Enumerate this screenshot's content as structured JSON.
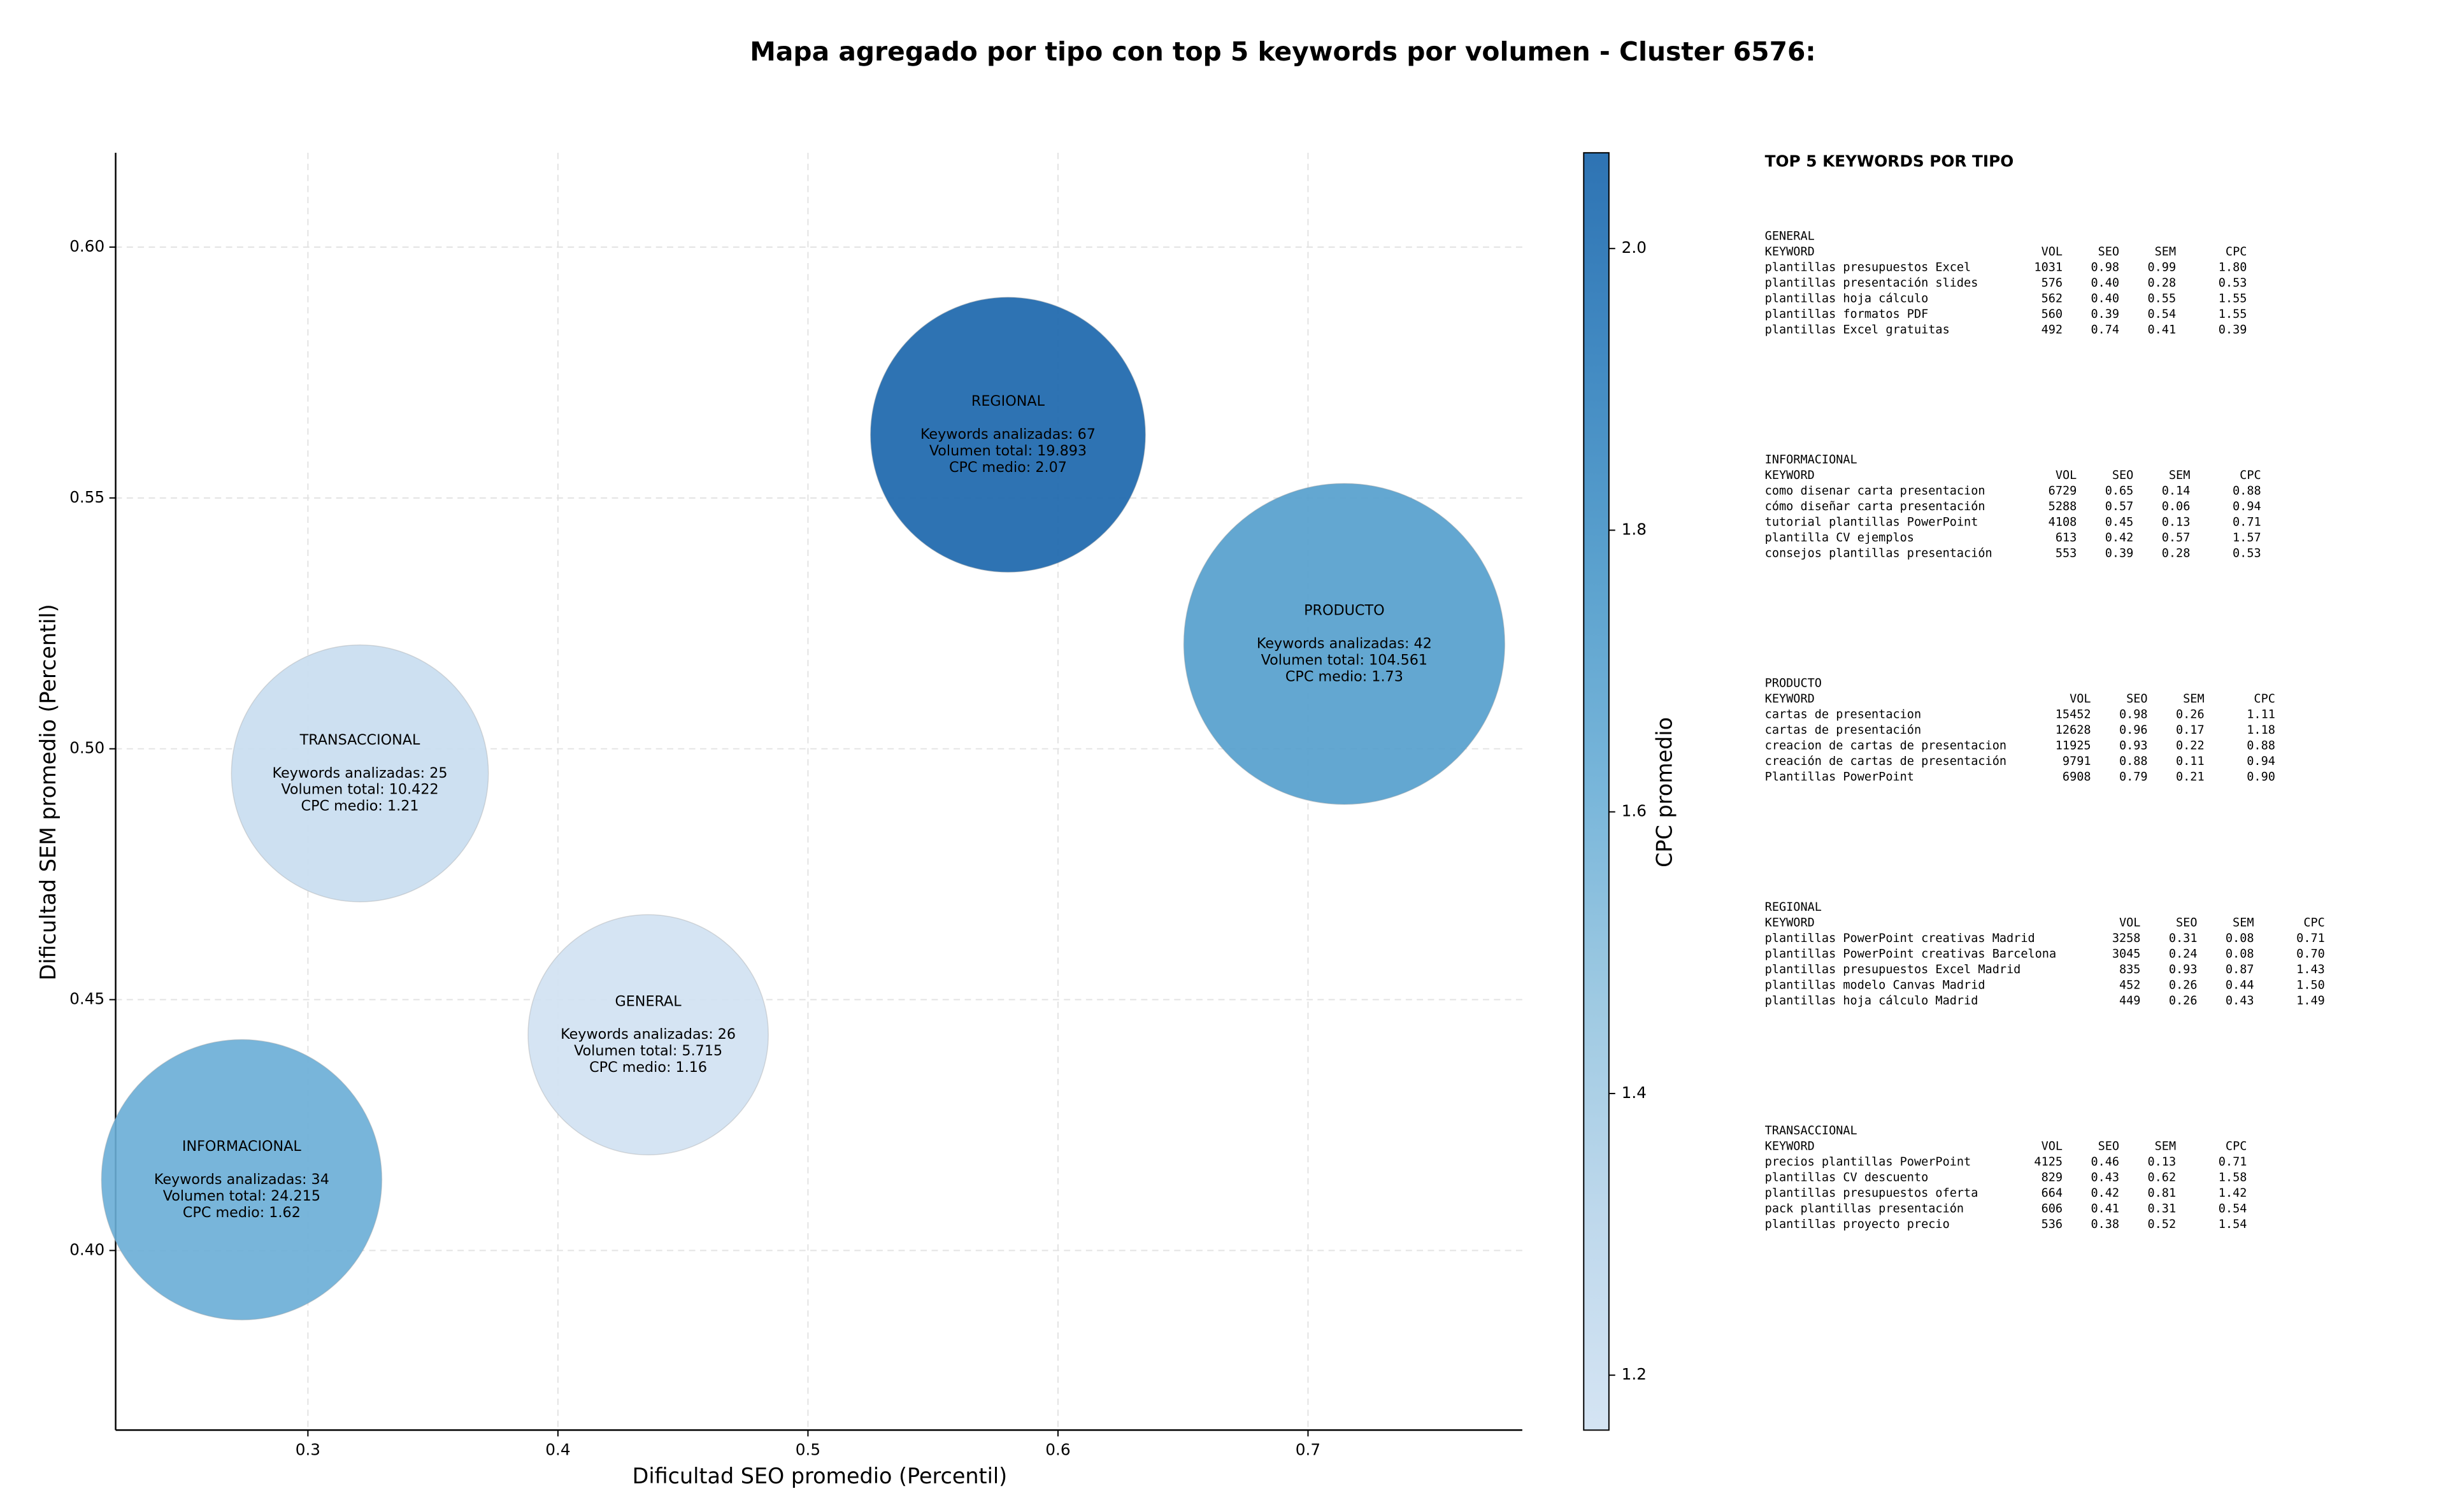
{
  "chart_data": {
    "type": "bubble",
    "title": "Mapa agregado por tipo con top 5 keywords por volumen - Cluster 6576:",
    "xlabel": "Dificultad SEO promedio (Percentil)",
    "ylabel": "Dificultad SEM promedio (Percentil)",
    "colorbar_label": "CPC promedio",
    "categories": [
      "GENERAL",
      "INFORMACIONAL",
      "PRODUCTO",
      "REGIONAL",
      "TRANSACCIONAL"
    ],
    "x": [
      0.4361,
      0.2735,
      0.7145,
      0.58,
      0.3208
    ],
    "values": [
      0.443,
      0.4141,
      0.5209,
      0.5626,
      0.4951
    ],
    "sizes": [
      5715,
      24215,
      104561,
      19893,
      10422
    ],
    "colors": [
      1.16,
      1.62,
      1.73,
      2.07,
      1.21
    ],
    "annotations": [
      [
        "Keywords analizadas: 26",
        "Volumen total: 5.715",
        "CPC medio: 1.16"
      ],
      [
        "Keywords analizadas: 34",
        "Volumen total: 24.215",
        "CPC medio: 1.62"
      ],
      [
        "Keywords analizadas: 42",
        "Volumen total: 104.561",
        "CPC medio: 1.73"
      ],
      [
        "Keywords analizadas: 67",
        "Volumen total: 19.893",
        "CPC medio: 2.07"
      ],
      [
        "Keywords analizadas: 25",
        "Volumen total: 10.422",
        "CPC medio: 1.21"
      ]
    ],
    "xlim": [
      0.2231,
      0.7857
    ],
    "ylim": [
      0.3642,
      0.6188
    ],
    "clim": [
      1.161,
      2.068
    ],
    "xticks": [
      0.3,
      0.4,
      0.5,
      0.6,
      0.7
    ],
    "yticks": [
      {
        "value": 0.4,
        "label": "0.40"
      },
      0.45,
      {
        "value": 0.5,
        "label": "0.50"
      },
      0.55,
      {
        "value": 0.6,
        "label": "0.60"
      }
    ],
    "cticks": [
      1.2,
      1.4,
      1.6,
      1.8,
      {
        "value": 2,
        "label": "2.0"
      }
    ],
    "colormap": [
      "#d0e1f2",
      "#b7d4ea",
      "#94c4df",
      "#6aaed6",
      "#4a98c9",
      "#2e7ebc",
      "#1764ab"
    ],
    "grid": true
  },
  "panel": {
    "title": "TOP 5 KEYWORDS POR TIPO",
    "header": [
      "KEYWORD",
      "VOL",
      "SEO",
      "SEM",
      "CPC"
    ],
    "sections": [
      {
        "name": "GENERAL",
        "rows": [
          [
            "plantillas presupuestos Excel",
            "1031",
            "0.98",
            "0.99",
            "1.80"
          ],
          [
            "plantillas presentación slides",
            "576",
            "0.40",
            "0.28",
            "0.53"
          ],
          [
            "plantillas hoja cálculo",
            "562",
            "0.40",
            "0.55",
            "1.55"
          ],
          [
            "plantillas formatos PDF",
            "560",
            "0.39",
            "0.54",
            "1.55"
          ],
          [
            "plantillas Excel gratuitas",
            "492",
            "0.74",
            "0.41",
            "0.39"
          ]
        ]
      },
      {
        "name": "INFORMACIONAL",
        "rows": [
          [
            "como disenar carta presentacion",
            "6729",
            "0.65",
            "0.14",
            "0.88"
          ],
          [
            "cómo diseñar carta presentación",
            "5288",
            "0.57",
            "0.06",
            "0.94"
          ],
          [
            "tutorial plantillas PowerPoint",
            "4108",
            "0.45",
            "0.13",
            "0.71"
          ],
          [
            "plantilla CV ejemplos",
            "613",
            "0.42",
            "0.57",
            "1.57"
          ],
          [
            "consejos plantillas presentación",
            "553",
            "0.39",
            "0.28",
            "0.53"
          ]
        ]
      },
      {
        "name": "PRODUCTO",
        "rows": [
          [
            "cartas de presentacion",
            "15452",
            "0.98",
            "0.26",
            "1.11"
          ],
          [
            "cartas de presentación",
            "12628",
            "0.96",
            "0.17",
            "1.18"
          ],
          [
            "creacion de cartas de presentacion",
            "11925",
            "0.93",
            "0.22",
            "0.88"
          ],
          [
            "creación de cartas de presentación",
            "9791",
            "0.88",
            "0.11",
            "0.94"
          ],
          [
            "Plantillas PowerPoint",
            "6908",
            "0.79",
            "0.21",
            "0.90"
          ]
        ]
      },
      {
        "name": "REGIONAL",
        "rows": [
          [
            "plantillas PowerPoint creativas Madrid",
            "3258",
            "0.31",
            "0.08",
            "0.71"
          ],
          [
            "plantillas PowerPoint creativas Barcelona",
            "3045",
            "0.24",
            "0.08",
            "0.70"
          ],
          [
            "plantillas presupuestos Excel Madrid",
            "835",
            "0.93",
            "0.87",
            "1.43"
          ],
          [
            "plantillas modelo Canvas Madrid",
            "452",
            "0.26",
            "0.44",
            "1.50"
          ],
          [
            "plantillas hoja cálculo Madrid",
            "449",
            "0.26",
            "0.43",
            "1.49"
          ]
        ]
      },
      {
        "name": "TRANSACCIONAL",
        "rows": [
          [
            "precios plantillas PowerPoint",
            "4125",
            "0.46",
            "0.13",
            "0.71"
          ],
          [
            "plantillas CV descuento",
            "829",
            "0.43",
            "0.62",
            "1.58"
          ],
          [
            "plantillas presupuestos oferta",
            "664",
            "0.42",
            "0.81",
            "1.42"
          ],
          [
            "pack plantillas presentación",
            "606",
            "0.41",
            "0.31",
            "0.54"
          ],
          [
            "plantillas proyecto precio",
            "536",
            "0.38",
            "0.52",
            "1.54"
          ]
        ]
      }
    ]
  }
}
